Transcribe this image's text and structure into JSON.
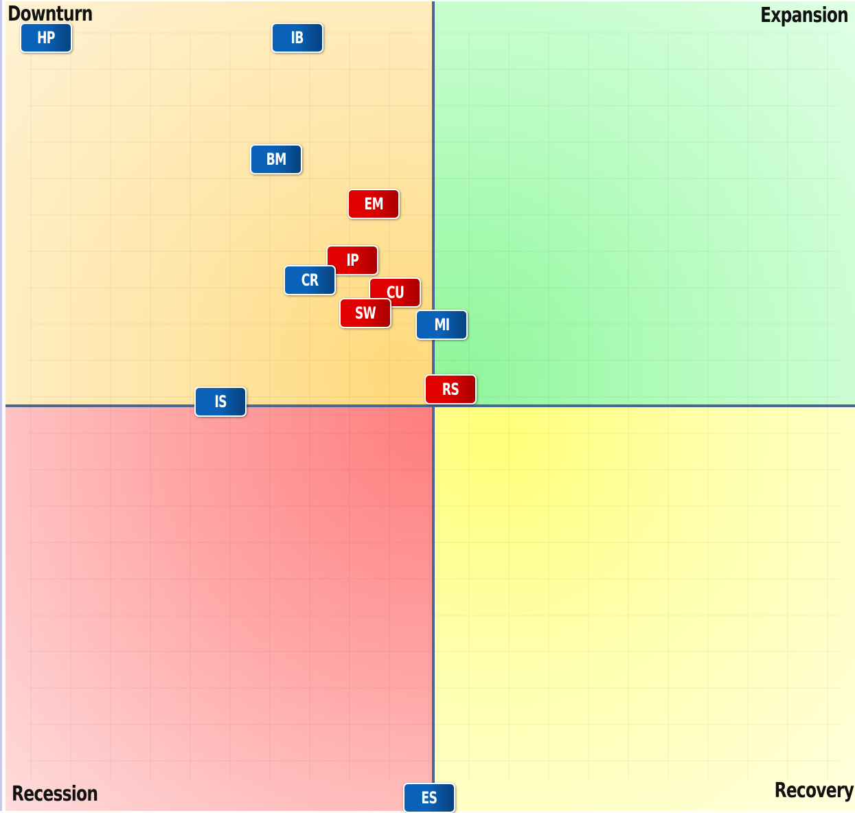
{
  "chart_data": {
    "type": "scatter",
    "title": "",
    "quadrants": {
      "top_left": "Downturn",
      "top_right": "Expansion",
      "bottom_left": "Recession",
      "bottom_right": "Recovery"
    },
    "xlim": [
      -1,
      1
    ],
    "ylim": [
      -1,
      1
    ],
    "grid": true,
    "colors": {
      "blue": "#0a62b8",
      "red": "#e00000",
      "axis": "#4a6694"
    },
    "points": [
      {
        "label": "HP",
        "x": -0.91,
        "y": 0.91,
        "color": "blue"
      },
      {
        "label": "IB",
        "x": -0.32,
        "y": 0.91,
        "color": "blue"
      },
      {
        "label": "BM",
        "x": -0.37,
        "y": 0.61,
        "color": "blue"
      },
      {
        "label": "EM",
        "x": -0.14,
        "y": 0.5,
        "color": "red"
      },
      {
        "label": "IP",
        "x": -0.19,
        "y": 0.36,
        "color": "red"
      },
      {
        "label": "CR",
        "x": -0.29,
        "y": 0.31,
        "color": "blue"
      },
      {
        "label": "CU",
        "x": -0.09,
        "y": 0.28,
        "color": "red"
      },
      {
        "label": "SW",
        "x": -0.16,
        "y": 0.23,
        "color": "red"
      },
      {
        "label": "MI",
        "x": 0.02,
        "y": 0.2,
        "color": "blue"
      },
      {
        "label": "RS",
        "x": 0.04,
        "y": 0.04,
        "color": "red"
      },
      {
        "label": "IS",
        "x": -0.5,
        "y": 0.01,
        "color": "blue"
      },
      {
        "label": "ES",
        "x": -0.01,
        "y": -0.97,
        "color": "blue"
      }
    ]
  }
}
